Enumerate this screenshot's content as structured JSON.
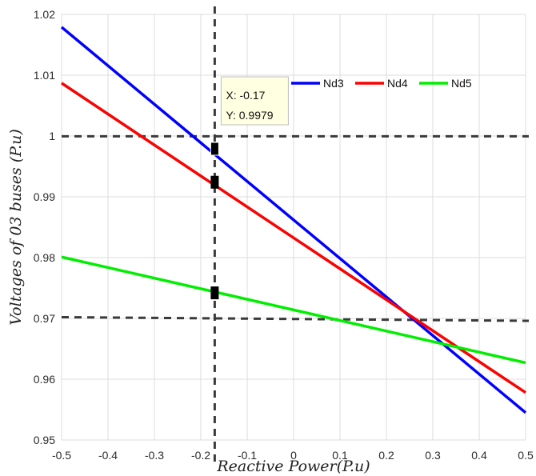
{
  "chart_data": {
    "type": "line",
    "title": "",
    "xlabel": "Reactive Power(P.u)",
    "ylabel": "Voltages of 03 buses (P.u)",
    "xlim": [
      -0.5,
      0.5
    ],
    "ylim": [
      0.95,
      1.02
    ],
    "x_ticks": [
      -0.5,
      -0.4,
      -0.3,
      -0.2,
      -0.1,
      0,
      0.1,
      0.2,
      0.3,
      0.4,
      0.5
    ],
    "x_tick_labels": [
      "-0.5",
      "-0.4",
      "-0.3",
      "-0.2",
      "-0.1",
      "0",
      "0.1",
      "0.2",
      "0.3",
      "0.4",
      "0.5"
    ],
    "y_ticks": [
      0.95,
      0.96,
      0.97,
      0.98,
      0.99,
      1.0,
      1.01,
      1.02
    ],
    "y_tick_labels": [
      "0.95",
      "0.96",
      "0.97",
      "0.98",
      "0.99",
      "1",
      "1.01",
      "1.02"
    ],
    "grid": true,
    "legend_position": "top-right",
    "series": [
      {
        "name": "Nd3",
        "color": "#0000ff",
        "x": [
          -0.5,
          0.5
        ],
        "y": [
          1.0179,
          0.9545
        ]
      },
      {
        "name": "Nd4",
        "color": "#ff0000",
        "x": [
          -0.5,
          0.5
        ],
        "y": [
          1.0087,
          0.9578
        ]
      },
      {
        "name": "Nd5",
        "color": "#00ee00",
        "x": [
          -0.5,
          0.5
        ],
        "y": [
          0.9801,
          0.9627
        ]
      }
    ],
    "reference_lines": [
      {
        "orientation": "vertical",
        "x": -0.17,
        "style": "dashed"
      },
      {
        "orientation": "horizontal",
        "y": [
          0.99995,
          0.99995
        ],
        "style": "dashed"
      },
      {
        "orientation": "horizontal",
        "y": [
          0.9702,
          0.9696
        ],
        "style": "dashed"
      }
    ],
    "markers": [
      {
        "x": -0.17,
        "y": 0.9979
      },
      {
        "x": -0.17,
        "y": 0.9924
      },
      {
        "x": -0.17,
        "y": 0.9742
      }
    ],
    "datatip": {
      "x_label": "X: -0.17",
      "y_label": "Y: 0.9979",
      "x": -0.17,
      "y": 0.9979
    }
  }
}
